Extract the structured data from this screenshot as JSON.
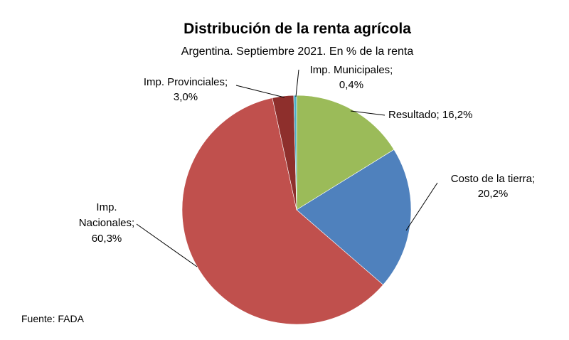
{
  "chart_data": {
    "type": "pie",
    "title": "Distribución de la renta agrícola",
    "subtitle": "Argentina. Septiembre 2021. En % de la renta",
    "source": "Fuente: FADA",
    "slices": [
      {
        "name": "Resultado",
        "value": 16.2,
        "label_lines": [
          "Resultado; 16,2%"
        ],
        "color": "#9BBB59"
      },
      {
        "name": "Costo de la tierra",
        "value": 20.2,
        "label_lines": [
          "Costo de la tierra;",
          "20,2%"
        ],
        "color": "#4F81BD"
      },
      {
        "name": "Imp. Nacionales",
        "value": 60.3,
        "label_lines": [
          "Imp.",
          "Nacionales;",
          "60,3%"
        ],
        "color": "#C0504D"
      },
      {
        "name": "Imp. Provinciales",
        "value": 3.0,
        "label_lines": [
          "Imp. Provinciales;",
          "3,0%"
        ],
        "color": "#8E2F2C"
      },
      {
        "name": "Imp. Municipales",
        "value": 0.4,
        "label_lines": [
          "Imp. Municipales;",
          "0,4%"
        ],
        "color": "#4BACC6"
      }
    ]
  }
}
